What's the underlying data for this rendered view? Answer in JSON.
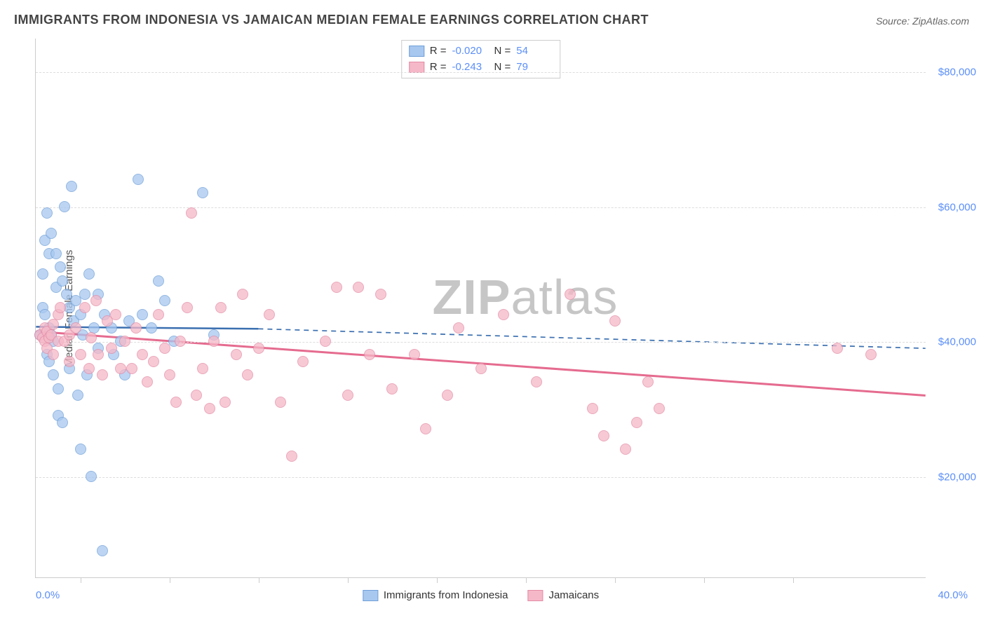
{
  "title": "IMMIGRANTS FROM INDONESIA VS JAMAICAN MEDIAN FEMALE EARNINGS CORRELATION CHART",
  "source_label": "Source: ZipAtlas.com",
  "watermark": {
    "bold": "ZIP",
    "rest": "atlas"
  },
  "chart": {
    "type": "scatter",
    "background_color": "#ffffff",
    "grid_color": "#dddddd",
    "axis_color": "#cccccc",
    "tick_color": "#5b8ff9",
    "y_axis_label": "Median Female Earnings",
    "x_axis": {
      "min": 0,
      "max": 40,
      "left_label": "0.0%",
      "right_label": "40.0%",
      "tick_positions": [
        2,
        6,
        10,
        14,
        18,
        22,
        26,
        30,
        34
      ]
    },
    "y_axis": {
      "min": 5000,
      "max": 85000,
      "gridlines": [
        20000,
        40000,
        60000,
        80000
      ],
      "labels": [
        "$20,000",
        "$40,000",
        "$60,000",
        "$80,000"
      ]
    },
    "series": [
      {
        "name": "Immigrants from Indonesia",
        "fill_color": "#a8c8f0",
        "stroke_color": "#6f9fd8",
        "R": "-0.020",
        "N": "54",
        "trend": {
          "solid_x1": 0,
          "solid_y1": 42200,
          "solid_x2": 10,
          "solid_y2": 41900,
          "dash_x1": 10,
          "dash_y1": 41900,
          "dash_x2": 40,
          "dash_y2": 39000,
          "color": "#3a6fb0",
          "width": 2.5
        },
        "points": [
          [
            0.2,
            41000
          ],
          [
            0.3,
            50000
          ],
          [
            0.3,
            45000
          ],
          [
            0.4,
            55000
          ],
          [
            0.5,
            38000
          ],
          [
            0.5,
            59000
          ],
          [
            0.6,
            53000
          ],
          [
            0.6,
            42000
          ],
          [
            0.7,
            41000
          ],
          [
            0.7,
            56000
          ],
          [
            0.8,
            40000
          ],
          [
            0.8,
            35000
          ],
          [
            0.9,
            53000
          ],
          [
            0.9,
            48000
          ],
          [
            1.0,
            29000
          ],
          [
            1.0,
            33000
          ],
          [
            1.2,
            49000
          ],
          [
            1.2,
            28000
          ],
          [
            1.3,
            60000
          ],
          [
            1.4,
            47000
          ],
          [
            1.5,
            36000
          ],
          [
            1.5,
            45000
          ],
          [
            1.6,
            63000
          ],
          [
            1.7,
            43000
          ],
          [
            1.8,
            46000
          ],
          [
            1.9,
            32000
          ],
          [
            2.0,
            24000
          ],
          [
            2.0,
            44000
          ],
          [
            2.2,
            47000
          ],
          [
            2.3,
            35000
          ],
          [
            2.4,
            50000
          ],
          [
            2.5,
            20000
          ],
          [
            2.6,
            42000
          ],
          [
            2.8,
            39000
          ],
          [
            2.8,
            47000
          ],
          [
            3.0,
            9000
          ],
          [
            3.1,
            44000
          ],
          [
            3.4,
            42000
          ],
          [
            3.5,
            38000
          ],
          [
            3.8,
            40000
          ],
          [
            4.0,
            35000
          ],
          [
            4.2,
            43000
          ],
          [
            4.6,
            64000
          ],
          [
            4.8,
            44000
          ],
          [
            5.2,
            42000
          ],
          [
            5.5,
            49000
          ],
          [
            5.8,
            46000
          ],
          [
            6.2,
            40000
          ],
          [
            7.5,
            62000
          ],
          [
            8.0,
            41000
          ],
          [
            0.4,
            44000
          ],
          [
            1.1,
            51000
          ],
          [
            0.6,
            37000
          ],
          [
            2.1,
            41000
          ]
        ]
      },
      {
        "name": "Jamaicans",
        "fill_color": "#f5b8c8",
        "stroke_color": "#e38ba5",
        "R": "-0.243",
        "N": "79",
        "trend": {
          "solid_x1": 0,
          "solid_y1": 41500,
          "solid_x2": 40,
          "solid_y2": 32000,
          "dash_x1": null,
          "dash_y1": null,
          "dash_x2": null,
          "dash_y2": null,
          "color": "#e56b8f",
          "width": 3
        },
        "points": [
          [
            0.2,
            41000
          ],
          [
            0.3,
            40500
          ],
          [
            0.4,
            42000
          ],
          [
            0.4,
            40000
          ],
          [
            0.5,
            41500
          ],
          [
            0.5,
            39000
          ],
          [
            0.6,
            40500
          ],
          [
            0.7,
            41000
          ],
          [
            0.8,
            42500
          ],
          [
            0.8,
            38000
          ],
          [
            1.0,
            40000
          ],
          [
            1.0,
            44000
          ],
          [
            1.1,
            45000
          ],
          [
            1.3,
            40000
          ],
          [
            1.5,
            41000
          ],
          [
            1.5,
            37000
          ],
          [
            1.8,
            42000
          ],
          [
            2.0,
            38000
          ],
          [
            2.2,
            45000
          ],
          [
            2.4,
            36000
          ],
          [
            2.5,
            40500
          ],
          [
            2.7,
            46000
          ],
          [
            2.8,
            38000
          ],
          [
            3.0,
            35000
          ],
          [
            3.2,
            43000
          ],
          [
            3.4,
            39000
          ],
          [
            3.6,
            44000
          ],
          [
            3.8,
            36000
          ],
          [
            4.0,
            40000
          ],
          [
            4.3,
            36000
          ],
          [
            4.5,
            42000
          ],
          [
            4.8,
            38000
          ],
          [
            5.0,
            34000
          ],
          [
            5.3,
            37000
          ],
          [
            5.5,
            44000
          ],
          [
            5.8,
            39000
          ],
          [
            6.0,
            35000
          ],
          [
            6.3,
            31000
          ],
          [
            6.5,
            40000
          ],
          [
            6.8,
            45000
          ],
          [
            7.0,
            59000
          ],
          [
            7.2,
            32000
          ],
          [
            7.5,
            36000
          ],
          [
            7.8,
            30000
          ],
          [
            8.0,
            40000
          ],
          [
            8.3,
            45000
          ],
          [
            8.5,
            31000
          ],
          [
            9.0,
            38000
          ],
          [
            9.3,
            47000
          ],
          [
            9.5,
            35000
          ],
          [
            10.0,
            39000
          ],
          [
            10.5,
            44000
          ],
          [
            11.0,
            31000
          ],
          [
            11.5,
            23000
          ],
          [
            12.0,
            37000
          ],
          [
            13.0,
            40000
          ],
          [
            13.5,
            48000
          ],
          [
            14.0,
            32000
          ],
          [
            14.5,
            48000
          ],
          [
            15.0,
            38000
          ],
          [
            15.5,
            47000
          ],
          [
            16.0,
            33000
          ],
          [
            17.0,
            38000
          ],
          [
            17.5,
            27000
          ],
          [
            18.5,
            32000
          ],
          [
            19.0,
            42000
          ],
          [
            20.0,
            36000
          ],
          [
            21.0,
            44000
          ],
          [
            22.5,
            34000
          ],
          [
            24.0,
            47000
          ],
          [
            25.0,
            30000
          ],
          [
            25.5,
            26000
          ],
          [
            26.0,
            43000
          ],
          [
            26.5,
            24000
          ],
          [
            27.0,
            28000
          ],
          [
            27.5,
            34000
          ],
          [
            28.0,
            30000
          ],
          [
            36.0,
            39000
          ],
          [
            37.5,
            38000
          ]
        ]
      }
    ]
  }
}
